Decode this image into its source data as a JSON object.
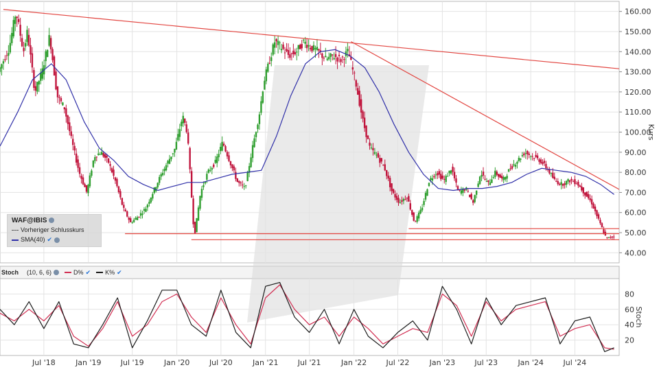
{
  "chart_data": [
    {
      "type": "candlestick",
      "symbol": "WAF@IBIS",
      "ylabel": "Kurs",
      "ylim": [
        35,
        165
      ],
      "yticks": [
        40,
        50,
        60,
        70,
        80,
        90,
        100,
        110,
        120,
        130,
        140,
        150,
        160
      ],
      "ytick_labels": [
        "40.00",
        "50.00",
        "60.00",
        "70.00",
        "80.00",
        "90.00",
        "100.00",
        "110.00",
        "120.00",
        "130.00",
        "140.00",
        "150.00",
        "160.00"
      ],
      "x_start": "2018-01-01",
      "x_end": "2024-12-31",
      "xticks": [
        "2018-07-01",
        "2019-01-01",
        "2019-07-01",
        "2020-01-01",
        "2020-07-01",
        "2021-01-01",
        "2021-07-01",
        "2022-01-01",
        "2022-07-01",
        "2023-01-01",
        "2023-07-01",
        "2024-01-01",
        "2024-07-01"
      ],
      "xtick_labels": [
        "Jul '18",
        "Jan '19",
        "Jul '19",
        "Jan '20",
        "Jul '20",
        "Jan '21",
        "Jul '21",
        "Jan '22",
        "Jul '22",
        "Jan '23",
        "Jul '23",
        "Jan '24",
        "Jul '24"
      ],
      "price_path": [
        [
          "2018-01-01",
          130
        ],
        [
          "2018-02-15",
          142
        ],
        [
          "2018-03-15",
          160
        ],
        [
          "2018-04-15",
          140
        ],
        [
          "2018-05-01",
          150
        ],
        [
          "2018-06-01",
          120
        ],
        [
          "2018-07-01",
          130
        ],
        [
          "2018-08-01",
          148
        ],
        [
          "2018-09-01",
          118
        ],
        [
          "2018-10-01",
          112
        ],
        [
          "2018-11-01",
          95
        ],
        [
          "2018-12-01",
          80
        ],
        [
          "2019-01-01",
          70
        ],
        [
          "2019-02-01",
          88
        ],
        [
          "2019-03-01",
          90
        ],
        [
          "2019-04-01",
          85
        ],
        [
          "2019-05-01",
          75
        ],
        [
          "2019-06-01",
          62
        ],
        [
          "2019-07-01",
          55
        ],
        [
          "2019-08-01",
          58
        ],
        [
          "2019-09-01",
          62
        ],
        [
          "2019-10-01",
          70
        ],
        [
          "2019-11-01",
          78
        ],
        [
          "2019-12-01",
          85
        ],
        [
          "2020-01-01",
          92
        ],
        [
          "2020-02-01",
          108
        ],
        [
          "2020-02-20",
          100
        ],
        [
          "2020-03-20",
          48
        ],
        [
          "2020-04-15",
          70
        ],
        [
          "2020-05-15",
          80
        ],
        [
          "2020-06-15",
          85
        ],
        [
          "2020-07-15",
          95
        ],
        [
          "2020-08-15",
          85
        ],
        [
          "2020-09-15",
          75
        ],
        [
          "2020-10-15",
          72
        ],
        [
          "2020-11-15",
          92
        ],
        [
          "2020-12-15",
          110
        ],
        [
          "2021-01-01",
          125
        ],
        [
          "2021-02-15",
          145
        ],
        [
          "2021-03-15",
          142
        ],
        [
          "2021-04-15",
          138
        ],
        [
          "2021-05-15",
          140
        ],
        [
          "2021-06-15",
          145
        ],
        [
          "2021-07-15",
          142
        ],
        [
          "2021-08-15",
          140
        ],
        [
          "2021-09-15",
          136
        ],
        [
          "2021-10-15",
          138
        ],
        [
          "2021-11-15",
          136
        ],
        [
          "2021-12-15",
          140
        ],
        [
          "2022-01-15",
          125
        ],
        [
          "2022-02-15",
          105
        ],
        [
          "2022-03-15",
          92
        ],
        [
          "2022-04-15",
          88
        ],
        [
          "2022-05-15",
          82
        ],
        [
          "2022-06-15",
          70
        ],
        [
          "2022-07-15",
          65
        ],
        [
          "2022-08-15",
          68
        ],
        [
          "2022-09-15",
          55
        ],
        [
          "2022-10-15",
          62
        ],
        [
          "2022-11-15",
          76
        ],
        [
          "2022-12-15",
          80
        ],
        [
          "2023-01-15",
          76
        ],
        [
          "2023-02-15",
          82
        ],
        [
          "2023-03-15",
          70
        ],
        [
          "2023-04-15",
          72
        ],
        [
          "2023-05-15",
          65
        ],
        [
          "2023-06-15",
          80
        ],
        [
          "2023-07-15",
          74
        ],
        [
          "2023-08-15",
          80
        ],
        [
          "2023-09-15",
          76
        ],
        [
          "2023-10-15",
          82
        ],
        [
          "2023-11-15",
          86
        ],
        [
          "2023-12-15",
          90
        ],
        [
          "2024-01-15",
          88
        ],
        [
          "2024-02-15",
          86
        ],
        [
          "2024-03-15",
          82
        ],
        [
          "2024-04-15",
          76
        ],
        [
          "2024-05-15",
          74
        ],
        [
          "2024-06-15",
          76
        ],
        [
          "2024-07-15",
          75
        ],
        [
          "2024-08-15",
          70
        ],
        [
          "2024-09-15",
          65
        ],
        [
          "2024-10-15",
          56
        ],
        [
          "2024-11-15",
          47
        ],
        [
          "2024-12-10",
          48
        ]
      ],
      "sma_label": "SMA(40)",
      "sma_path": [
        [
          "2018-01-01",
          93
        ],
        [
          "2018-03-15",
          110
        ],
        [
          "2018-05-15",
          126
        ],
        [
          "2018-08-01",
          134
        ],
        [
          "2018-10-01",
          126
        ],
        [
          "2018-12-15",
          105
        ],
        [
          "2019-02-15",
          92
        ],
        [
          "2019-04-15",
          86
        ],
        [
          "2019-06-15",
          78
        ],
        [
          "2019-08-15",
          74
        ],
        [
          "2019-10-15",
          71
        ],
        [
          "2019-12-15",
          73
        ],
        [
          "2020-02-15",
          75
        ],
        [
          "2020-04-15",
          75
        ],
        [
          "2020-06-15",
          77
        ],
        [
          "2020-08-15",
          79
        ],
        [
          "2020-10-15",
          80
        ],
        [
          "2020-12-15",
          81
        ],
        [
          "2021-02-15",
          98
        ],
        [
          "2021-04-15",
          118
        ],
        [
          "2021-06-15",
          134
        ],
        [
          "2021-08-15",
          140
        ],
        [
          "2021-10-15",
          141
        ],
        [
          "2021-12-15",
          138
        ],
        [
          "2022-02-15",
          132
        ],
        [
          "2022-04-15",
          120
        ],
        [
          "2022-06-15",
          104
        ],
        [
          "2022-08-15",
          90
        ],
        [
          "2022-10-15",
          79
        ],
        [
          "2022-12-15",
          72
        ],
        [
          "2023-02-15",
          71
        ],
        [
          "2023-04-15",
          72
        ],
        [
          "2023-06-15",
          72
        ],
        [
          "2023-08-15",
          73
        ],
        [
          "2023-10-15",
          75
        ],
        [
          "2023-12-15",
          79
        ],
        [
          "2024-02-15",
          82
        ],
        [
          "2024-04-15",
          81
        ],
        [
          "2024-06-15",
          80
        ],
        [
          "2024-08-15",
          78
        ],
        [
          "2024-10-15",
          74
        ],
        [
          "2024-12-10",
          69
        ]
      ],
      "trendlines": [
        {
          "from": [
            "2018-01-15",
            161
          ],
          "to": [
            "2024-12-31",
            131.5
          ]
        },
        {
          "from": [
            "2021-12-20",
            145
          ],
          "to": [
            "2024-12-31",
            71.5
          ]
        }
      ],
      "horizontal_levels": [
        {
          "value": 49.5,
          "from": "2019-06-01",
          "to": "2024-12-31"
        },
        {
          "value": 46.5,
          "from": "2020-03-01",
          "to": "2024-12-31"
        },
        {
          "value": 52,
          "from": "2022-08-15",
          "to": "2024-12-31"
        }
      ],
      "legend": {
        "title": "WAF@IBIS",
        "entries": [
          {
            "label": "Vorheriger Schlusskurs",
            "style": "dashed",
            "color": "#555555"
          },
          {
            "label": "SMA(40)",
            "style": "solid",
            "color": "#2f2fa8"
          }
        ]
      },
      "colors": {
        "up": "#2e9e2e",
        "down": "#c0143c",
        "sma": "#2f2fa8",
        "trendline": "#e2443f",
        "level": "#e2443f"
      }
    },
    {
      "type": "line",
      "title": "Stoch",
      "params": "(10, 6, 6)",
      "ylabel": "Stoch",
      "ylim": [
        0,
        100
      ],
      "yticks": [
        20,
        40,
        60,
        80
      ],
      "ytick_labels": [
        "20",
        "40",
        "60",
        "80"
      ],
      "series": [
        {
          "name": "D%",
          "color": "#d12d51",
          "values": [
            [
              "2018-01-01",
              55
            ],
            [
              "2018-03-01",
              45
            ],
            [
              "2018-05-01",
              60
            ],
            [
              "2018-07-01",
              45
            ],
            [
              "2018-09-01",
              65
            ],
            [
              "2018-11-01",
              25
            ],
            [
              "2019-01-01",
              12
            ],
            [
              "2019-03-01",
              35
            ],
            [
              "2019-05-01",
              70
            ],
            [
              "2019-07-01",
              25
            ],
            [
              "2019-09-01",
              40
            ],
            [
              "2019-11-01",
              70
            ],
            [
              "2020-01-01",
              80
            ],
            [
              "2020-03-01",
              50
            ],
            [
              "2020-05-01",
              30
            ],
            [
              "2020-07-01",
              75
            ],
            [
              "2020-09-01",
              40
            ],
            [
              "2020-11-01",
              15
            ],
            [
              "2021-01-01",
              75
            ],
            [
              "2021-03-01",
              92
            ],
            [
              "2021-05-01",
              60
            ],
            [
              "2021-07-01",
              40
            ],
            [
              "2021-09-01",
              50
            ],
            [
              "2021-11-01",
              25
            ],
            [
              "2022-01-01",
              50
            ],
            [
              "2022-03-01",
              35
            ],
            [
              "2022-05-01",
              15
            ],
            [
              "2022-07-01",
              25
            ],
            [
              "2022-09-01",
              35
            ],
            [
              "2022-11-01",
              30
            ],
            [
              "2023-01-01",
              80
            ],
            [
              "2023-03-01",
              65
            ],
            [
              "2023-05-01",
              25
            ],
            [
              "2023-07-01",
              70
            ],
            [
              "2023-09-01",
              45
            ],
            [
              "2023-11-01",
              60
            ],
            [
              "2024-01-01",
              65
            ],
            [
              "2024-03-01",
              70
            ],
            [
              "2024-05-01",
              25
            ],
            [
              "2024-07-01",
              35
            ],
            [
              "2024-09-01",
              40
            ],
            [
              "2024-11-01",
              10
            ],
            [
              "2024-12-10",
              8
            ]
          ]
        },
        {
          "name": "K%",
          "color": "#1a1a1a",
          "values": [
            [
              "2018-01-01",
              60
            ],
            [
              "2018-03-01",
              40
            ],
            [
              "2018-05-01",
              70
            ],
            [
              "2018-07-01",
              35
            ],
            [
              "2018-09-01",
              70
            ],
            [
              "2018-11-01",
              15
            ],
            [
              "2019-01-01",
              10
            ],
            [
              "2019-03-01",
              40
            ],
            [
              "2019-05-01",
              75
            ],
            [
              "2019-07-01",
              10
            ],
            [
              "2019-09-01",
              45
            ],
            [
              "2019-11-01",
              85
            ],
            [
              "2020-01-01",
              85
            ],
            [
              "2020-03-01",
              40
            ],
            [
              "2020-05-01",
              25
            ],
            [
              "2020-07-01",
              85
            ],
            [
              "2020-09-01",
              30
            ],
            [
              "2020-11-01",
              10
            ],
            [
              "2021-01-01",
              90
            ],
            [
              "2021-03-01",
              95
            ],
            [
              "2021-05-01",
              50
            ],
            [
              "2021-07-01",
              30
            ],
            [
              "2021-09-01",
              60
            ],
            [
              "2021-11-01",
              15
            ],
            [
              "2022-01-01",
              60
            ],
            [
              "2022-03-01",
              25
            ],
            [
              "2022-05-01",
              10
            ],
            [
              "2022-07-01",
              30
            ],
            [
              "2022-09-01",
              45
            ],
            [
              "2022-11-01",
              20
            ],
            [
              "2023-01-01",
              90
            ],
            [
              "2023-03-01",
              60
            ],
            [
              "2023-05-01",
              15
            ],
            [
              "2023-07-01",
              75
            ],
            [
              "2023-09-01",
              40
            ],
            [
              "2023-11-01",
              65
            ],
            [
              "2024-01-01",
              70
            ],
            [
              "2024-03-01",
              75
            ],
            [
              "2024-05-01",
              15
            ],
            [
              "2024-07-01",
              45
            ],
            [
              "2024-09-01",
              50
            ],
            [
              "2024-11-01",
              5
            ],
            [
              "2024-12-10",
              10
            ]
          ]
        }
      ]
    }
  ]
}
